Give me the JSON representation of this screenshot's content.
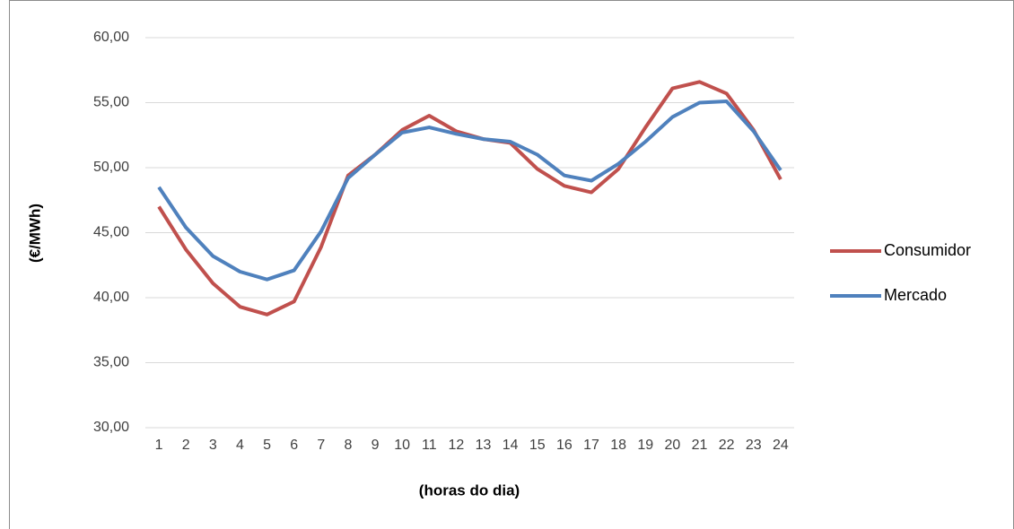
{
  "chart_data": {
    "type": "line",
    "x_label": "(horas do dia)",
    "y_label": "(€/MWh)",
    "categories": [
      "1",
      "2",
      "3",
      "4",
      "5",
      "6",
      "7",
      "8",
      "9",
      "10",
      "11",
      "12",
      "13",
      "14",
      "15",
      "16",
      "17",
      "18",
      "19",
      "20",
      "21",
      "22",
      "23",
      "24"
    ],
    "series": [
      {
        "name": "Consumidor",
        "color": "#c0504d",
        "values": [
          47.0,
          43.7,
          41.1,
          39.3,
          38.7,
          39.7,
          43.9,
          49.4,
          51.0,
          52.9,
          54.0,
          52.8,
          52.2,
          51.9,
          49.9,
          48.6,
          48.1,
          49.9,
          53.1,
          56.1,
          56.6,
          55.7,
          52.9,
          49.1
        ]
      },
      {
        "name": "Mercado",
        "color": "#4f81bd",
        "values": [
          48.5,
          45.4,
          43.2,
          42.0,
          41.4,
          42.1,
          45.1,
          49.2,
          51.0,
          52.7,
          53.1,
          52.6,
          52.2,
          52.0,
          51.0,
          49.4,
          49.0,
          50.3,
          52.0,
          53.9,
          55.0,
          55.1,
          52.8,
          49.8
        ]
      }
    ],
    "ylim": [
      30,
      60
    ],
    "yticks": [
      {
        "value": 30,
        "label": "30,00"
      },
      {
        "value": 35,
        "label": "35,00"
      },
      {
        "value": 40,
        "label": "40,00"
      },
      {
        "value": 45,
        "label": "45,00"
      },
      {
        "value": 50,
        "label": "50,00"
      },
      {
        "value": 55,
        "label": "55,00"
      },
      {
        "value": 60,
        "label": "60,00"
      }
    ],
    "grid": true,
    "legend": "right"
  }
}
